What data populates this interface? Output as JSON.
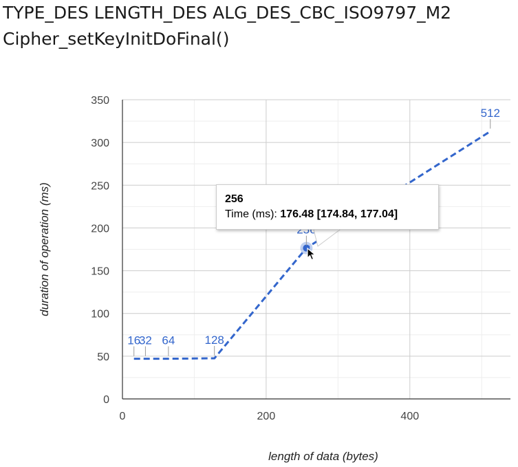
{
  "title": {
    "line1": "TYPE_DES LENGTH_DES ALG_DES_CBC_ISO9797_M2",
    "line2": "Cipher_setKeyInitDoFinal()"
  },
  "chart_data": {
    "type": "line",
    "title": "TYPE_DES LENGTH_DES ALG_DES_CBC_ISO9797_M2 Cipher_setKeyInitDoFinal()",
    "xlabel": "length of data (bytes)",
    "ylabel": "duration of operation (ms)",
    "xlim": [
      0,
      540
    ],
    "ylim": [
      0,
      350
    ],
    "x_ticks": [
      0,
      200,
      400
    ],
    "y_ticks": [
      0,
      50,
      100,
      150,
      200,
      250,
      300,
      350
    ],
    "grid": true,
    "series": [
      {
        "color": "#3366cc",
        "line_style": "dashed",
        "points": [
          {
            "x": 16,
            "y": 47,
            "label": "16"
          },
          {
            "x": 32,
            "y": 47,
            "label": "32"
          },
          {
            "x": 64,
            "y": 47,
            "label": "64"
          },
          {
            "x": 128,
            "y": 47.5,
            "label": "128"
          },
          {
            "x": 256,
            "y": 176.48,
            "label": "256"
          },
          {
            "x": 512,
            "y": 313,
            "label": "512"
          }
        ]
      }
    ],
    "tooltip": {
      "header": "256",
      "label": "Time (ms): ",
      "value": "176.48 [174.84, 177.04]"
    }
  }
}
